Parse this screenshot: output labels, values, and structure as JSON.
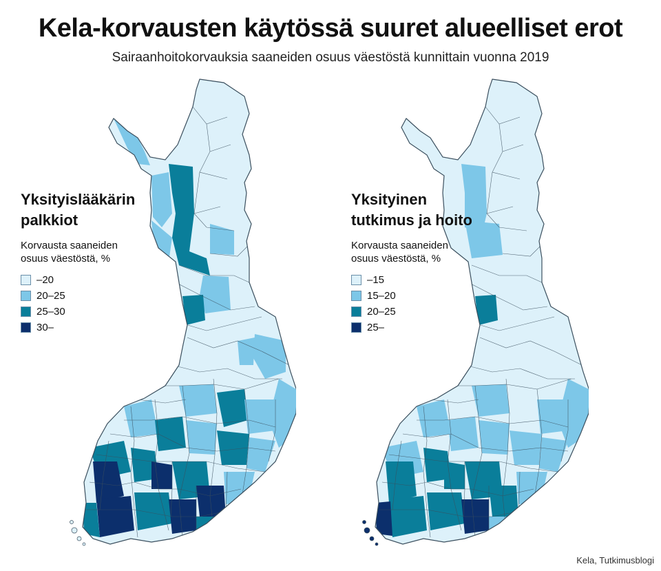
{
  "title": "Kela-korvausten käytössä suuret alueelliset erot",
  "subtitle": "Sairaanhoitokorvauksia saaneiden osuus väestöstä kunnittain vuonna 2019",
  "source": "Kela, Tutkimusblogi",
  "colors": {
    "class1": "#ddf1fa",
    "class2": "#7dc7e8",
    "class3": "#0a7e9a",
    "class4": "#0c2f6c",
    "border": "#3b4f5e"
  },
  "maps": [
    {
      "heading_line1": "Yksityislääkärin",
      "heading_line2": "palkkiot",
      "desc_line1": "Korvausta saaneiden",
      "desc_line2": "osuus väestöstä, %",
      "classes": [
        {
          "label": "–20",
          "color": "#ddf1fa"
        },
        {
          "label": "20–25",
          "color": "#7dc7e8"
        },
        {
          "label": "25–30",
          "color": "#0a7e9a"
        },
        {
          "label": "30–",
          "color": "#0c2f6c"
        }
      ]
    },
    {
      "heading_line1": "Yksityinen",
      "heading_line2": "tutkimus ja hoito",
      "desc_line1": "Korvausta saaneiden",
      "desc_line2": "osuus väestöstä, %",
      "classes": [
        {
          "label": "–15",
          "color": "#ddf1fa"
        },
        {
          "label": "15–20",
          "color": "#7dc7e8"
        },
        {
          "label": "20–25",
          "color": "#0a7e9a"
        },
        {
          "label": "25–",
          "color": "#0c2f6c"
        }
      ]
    }
  ]
}
